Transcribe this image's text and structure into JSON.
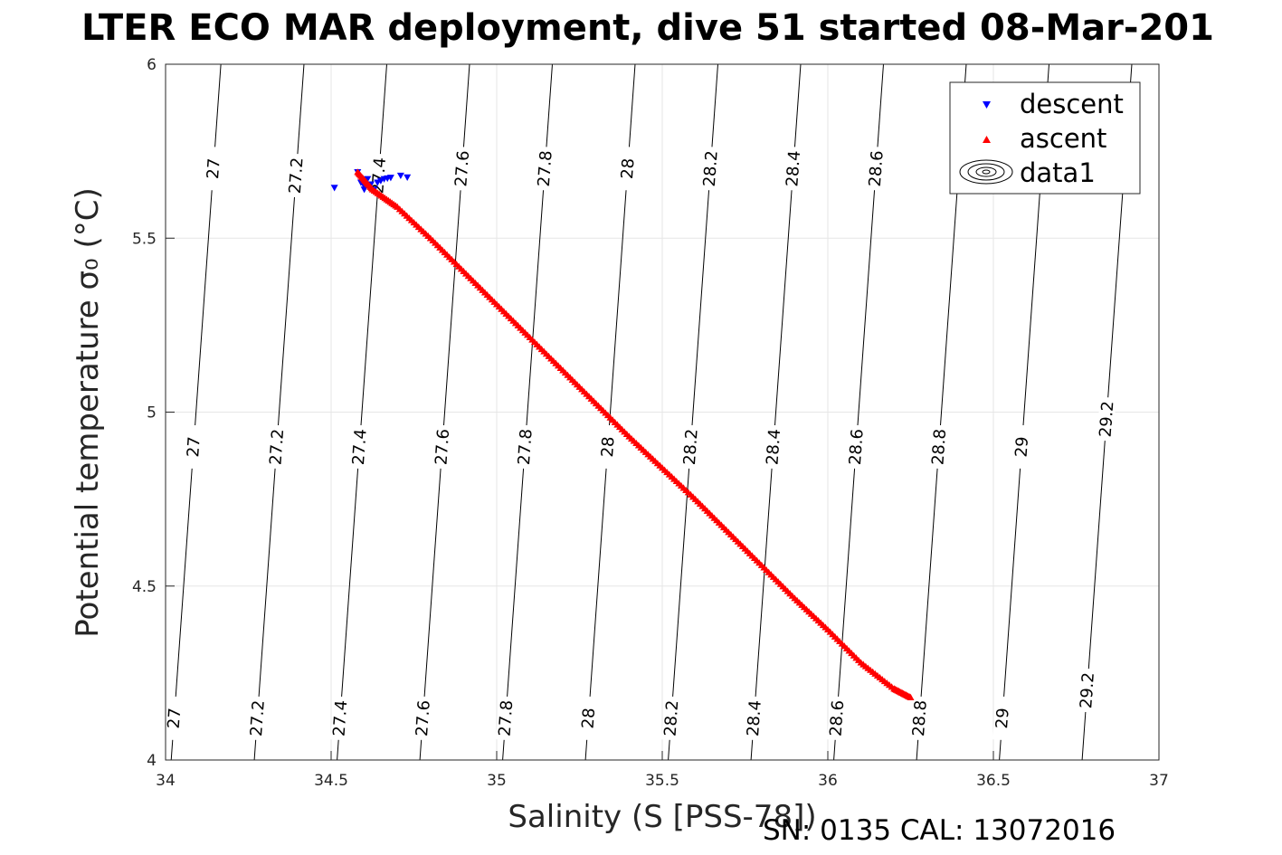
{
  "chart_data": {
    "type": "scatter",
    "title": "LTER ECO MAR deployment, dive 51 started 08-Mar-201",
    "xlabel": "Salinity (S [PSS-78])",
    "ylabel": "Potential temperature σ₀ (°C)",
    "xlim": [
      34,
      37
    ],
    "ylim": [
      4,
      6
    ],
    "xticks": [
      "34",
      "34.5",
      "35",
      "35.5",
      "36",
      "36.5",
      "37"
    ],
    "yticks": [
      "4",
      "4.5",
      "5",
      "5.5",
      "6"
    ],
    "grid": true,
    "legend_position": "top-right",
    "footer": "SN: 0135  CAL: 13072016",
    "series": [
      {
        "name": "descent",
        "marker": "triangle-down",
        "color": "#0000ff",
        "points": [
          [
            34.51,
            5.645
          ],
          [
            34.58,
            5.69
          ],
          [
            34.59,
            5.66
          ],
          [
            34.6,
            5.65
          ],
          [
            34.6,
            5.64
          ],
          [
            34.61,
            5.67
          ],
          [
            34.62,
            5.655
          ],
          [
            34.63,
            5.64
          ],
          [
            34.64,
            5.66
          ],
          [
            34.65,
            5.665
          ],
          [
            34.66,
            5.67
          ],
          [
            34.67,
            5.672
          ],
          [
            34.68,
            5.674
          ],
          [
            34.71,
            5.68
          ],
          [
            34.73,
            5.675
          ]
        ]
      },
      {
        "name": "ascent",
        "marker": "triangle-up",
        "color": "#ff0000",
        "points": [
          [
            34.58,
            5.69
          ],
          [
            34.625,
            5.64
          ],
          [
            34.7,
            5.59
          ],
          [
            34.8,
            5.5
          ],
          [
            34.9,
            5.405
          ],
          [
            35.0,
            5.31
          ],
          [
            35.1,
            5.215
          ],
          [
            35.2,
            5.12
          ],
          [
            35.3,
            5.025
          ],
          [
            35.4,
            4.93
          ],
          [
            35.5,
            4.84
          ],
          [
            35.6,
            4.75
          ],
          [
            35.7,
            4.655
          ],
          [
            35.8,
            4.56
          ],
          [
            35.9,
            4.465
          ],
          [
            36.0,
            4.375
          ],
          [
            36.1,
            4.28
          ],
          [
            36.2,
            4.205
          ],
          [
            36.25,
            4.18
          ]
        ]
      }
    ],
    "legend_entries": [
      "descent",
      "ascent",
      "data1"
    ],
    "density_contours": [
      {
        "label": "27",
        "slope": 0.075,
        "s_at_t4": 34.017,
        "labels_at_t": [
          5.7,
          4.9,
          4.12
        ]
      },
      {
        "label": "27.2",
        "slope": 0.075,
        "s_at_t4": 34.268,
        "labels_at_t": [
          5.68,
          4.9,
          4.12
        ]
      },
      {
        "label": "27.4",
        "slope": 0.075,
        "s_at_t4": 34.518,
        "labels_at_t": [
          5.68,
          4.9,
          4.12
        ]
      },
      {
        "label": "27.6",
        "slope": 0.075,
        "s_at_t4": 34.768,
        "labels_at_t": [
          5.7,
          4.9,
          4.12
        ]
      },
      {
        "label": "27.8",
        "slope": 0.075,
        "s_at_t4": 35.018,
        "labels_at_t": [
          5.7,
          4.9,
          4.12
        ]
      },
      {
        "label": "28",
        "slope": 0.075,
        "s_at_t4": 35.268,
        "labels_at_t": [
          5.7,
          4.9,
          4.12
        ]
      },
      {
        "label": "28.2",
        "slope": 0.075,
        "s_at_t4": 35.518,
        "labels_at_t": [
          5.7,
          4.9,
          4.12
        ]
      },
      {
        "label": "28.4",
        "slope": 0.075,
        "s_at_t4": 35.768,
        "labels_at_t": [
          5.7,
          4.9,
          4.12
        ]
      },
      {
        "label": "28.6",
        "slope": 0.075,
        "s_at_t4": 36.018,
        "labels_at_t": [
          5.7,
          4.9,
          4.12
        ]
      },
      {
        "label": "28.8",
        "slope": 0.075,
        "s_at_t4": 36.268,
        "labels_at_t": [
          4.9,
          4.12
        ]
      },
      {
        "label": "29",
        "slope": 0.075,
        "s_at_t4": 36.518,
        "labels_at_t": [
          4.9,
          4.12
        ]
      },
      {
        "label": "29.2",
        "slope": 0.075,
        "s_at_t4": 36.768,
        "labels_at_t": [
          4.98,
          4.2
        ]
      }
    ]
  }
}
